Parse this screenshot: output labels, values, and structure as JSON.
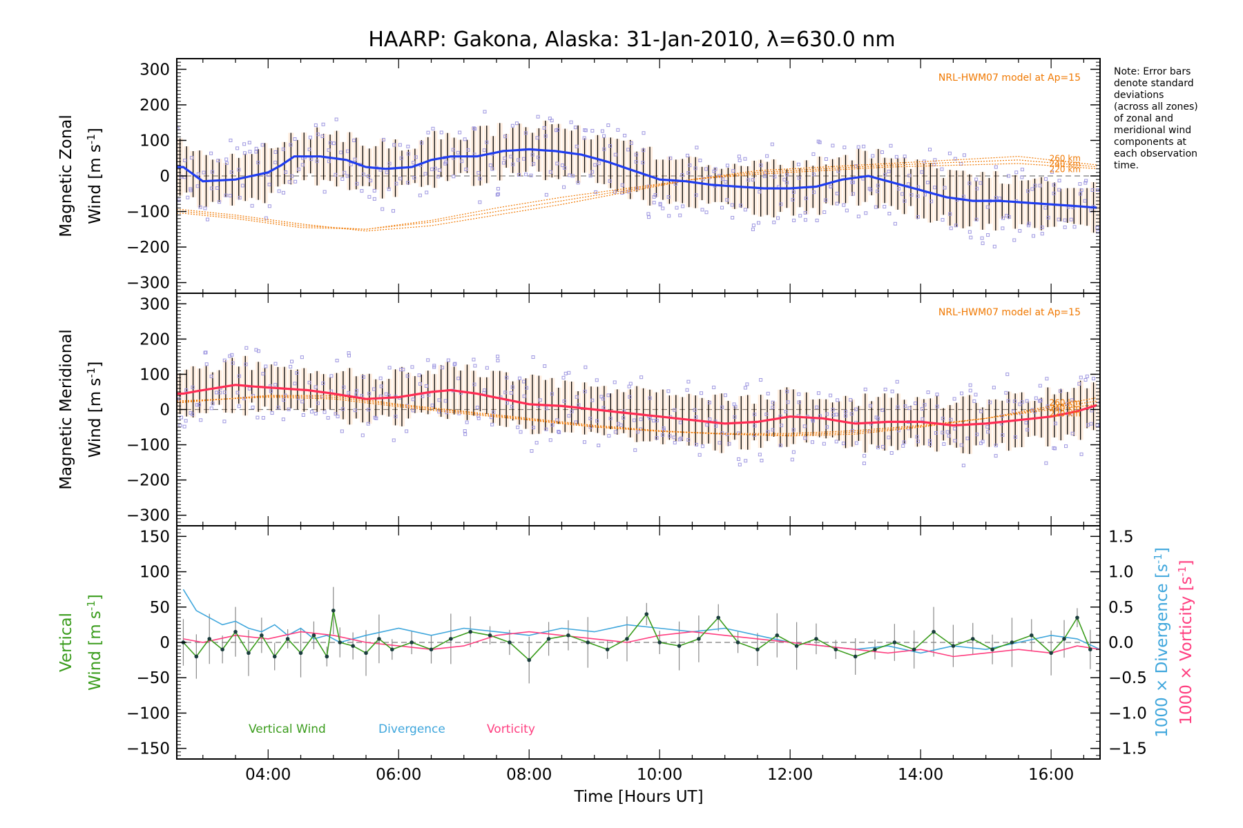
{
  "figure": {
    "title": "HAARP: Gakona,  Alaska: 31-Jan-2010, λ=630.0 nm",
    "xlabel": "Time [Hours UT]",
    "note": [
      "Note: Error bars",
      "denote standard",
      "deviations",
      "(across all zones)",
      "of zonal and",
      "meridional wind",
      "components at",
      "each observation",
      "time."
    ],
    "colors": {
      "zonal": "#1e3cf0",
      "meridional": "#ff2a52",
      "model": "#f07800",
      "vertical": "#3a9c1c",
      "divergence": "#3ea6dc",
      "vorticity": "#ff3d7f",
      "samples": "#9d96e0",
      "errbar": "#000000"
    }
  },
  "chart_data": [
    {
      "type": "line",
      "panel": "zonal",
      "ylabel_line1": "Magnetic Zonal",
      "ylabel_line2": "Wind [m s",
      "ylabel_sup": "-1",
      "ylabel_close": "]",
      "model_label": "NRL-HWM07 model at Ap=15",
      "model_altitudes": [
        "260 km",
        "240 km",
        "220 km"
      ],
      "xlim": [
        2.6,
        16.75
      ],
      "ylim": [
        -330,
        330
      ],
      "yticks": [
        "300",
        "200",
        "100",
        "0",
        "−100",
        "−200",
        "−300"
      ],
      "ytick_values": [
        300,
        200,
        100,
        0,
        -100,
        -200,
        -300
      ],
      "x": [
        2.7,
        3.0,
        3.5,
        4.0,
        4.2,
        4.4,
        4.8,
        5.2,
        5.5,
        5.8,
        6.2,
        6.5,
        6.8,
        7.2,
        7.6,
        8.0,
        8.4,
        8.8,
        9.2,
        9.6,
        10.0,
        10.4,
        10.8,
        11.2,
        11.6,
        12.0,
        12.4,
        12.8,
        13.2,
        13.6,
        14.0,
        14.4,
        14.8,
        15.2,
        15.6,
        16.0,
        16.4,
        16.75
      ],
      "values": [
        25,
        -15,
        -10,
        10,
        30,
        55,
        55,
        45,
        25,
        20,
        25,
        45,
        55,
        55,
        70,
        75,
        70,
        60,
        40,
        15,
        -10,
        -15,
        -25,
        -30,
        -35,
        -35,
        -30,
        -10,
        0,
        -20,
        -40,
        -60,
        -70,
        -70,
        -75,
        -80,
        -85,
        -90
      ],
      "model_curves": [
        {
          "name": "260 km",
          "x": [
            2.7,
            3.5,
            4.5,
            5.5,
            6.5,
            7.5,
            8.5,
            9.5,
            10.5,
            11.5,
            12.5,
            13.5,
            14.5,
            15.5,
            16.75
          ],
          "values": [
            -95,
            -110,
            -135,
            -155,
            -140,
            -110,
            -80,
            -45,
            -10,
            15,
            25,
            35,
            45,
            55,
            30
          ]
        },
        {
          "name": "240 km",
          "x": [
            2.7,
            3.5,
            4.5,
            5.5,
            6.5,
            7.5,
            8.5,
            9.5,
            10.5,
            11.5,
            12.5,
            13.5,
            14.5,
            15.5,
            16.75
          ],
          "values": [
            -100,
            -115,
            -140,
            -150,
            -130,
            -100,
            -70,
            -40,
            -10,
            10,
            20,
            30,
            38,
            45,
            25
          ]
        },
        {
          "name": "220 km",
          "x": [
            2.7,
            3.5,
            4.5,
            5.5,
            6.5,
            7.5,
            8.5,
            9.5,
            10.5,
            11.5,
            12.5,
            13.5,
            14.5,
            15.5,
            16.75
          ],
          "values": [
            -105,
            -120,
            -145,
            -150,
            -125,
            -90,
            -60,
            -35,
            -10,
            5,
            15,
            25,
            30,
            35,
            20
          ]
        }
      ]
    },
    {
      "type": "line",
      "panel": "meridional",
      "ylabel_line1": "Magnetic Meridional",
      "ylabel_line2": "Wind [m s",
      "ylabel_sup": "-1",
      "ylabel_close": "]",
      "model_label": "NRL-HWM07 model at Ap=15",
      "model_altitudes": [
        "260 km",
        "240 km",
        "220 km"
      ],
      "xlim": [
        2.6,
        16.75
      ],
      "ylim": [
        -330,
        330
      ],
      "yticks": [
        "300",
        "200",
        "100",
        "0",
        "−100",
        "−200",
        "−300"
      ],
      "ytick_values": [
        300,
        200,
        100,
        0,
        -100,
        -200,
        -300
      ],
      "x": [
        2.7,
        3.0,
        3.5,
        3.8,
        4.2,
        4.6,
        5.0,
        5.5,
        6.0,
        6.5,
        6.8,
        7.2,
        7.6,
        8.0,
        8.5,
        9.0,
        9.5,
        10.0,
        10.5,
        11.0,
        11.5,
        12.0,
        12.5,
        13.0,
        13.5,
        14.0,
        14.5,
        15.0,
        15.5,
        16.0,
        16.4,
        16.75
      ],
      "values": [
        45,
        55,
        70,
        65,
        60,
        55,
        45,
        30,
        35,
        50,
        55,
        45,
        30,
        15,
        10,
        0,
        -10,
        -20,
        -30,
        -40,
        -35,
        -20,
        -25,
        -40,
        -35,
        -35,
        -45,
        -40,
        -30,
        -20,
        -5,
        15
      ],
      "model_curves": [
        {
          "name": "260 km",
          "x": [
            2.7,
            4.0,
            5.0,
            6.0,
            7.0,
            8.0,
            9.0,
            10.0,
            11.0,
            12.0,
            13.0,
            14.0,
            15.0,
            16.0,
            16.75
          ],
          "values": [
            20,
            40,
            40,
            15,
            -5,
            -25,
            -45,
            -60,
            -70,
            -75,
            -70,
            -50,
            -25,
            10,
            35
          ]
        },
        {
          "name": "240 km",
          "x": [
            2.7,
            4.0,
            5.0,
            6.0,
            7.0,
            8.0,
            9.0,
            10.0,
            11.0,
            12.0,
            13.0,
            14.0,
            15.0,
            16.0,
            16.75
          ],
          "values": [
            22,
            38,
            35,
            12,
            -8,
            -28,
            -48,
            -62,
            -70,
            -72,
            -65,
            -48,
            -25,
            5,
            25
          ]
        },
        {
          "name": "220 km",
          "x": [
            2.7,
            4.0,
            5.0,
            6.0,
            7.0,
            8.0,
            9.0,
            10.0,
            11.0,
            12.0,
            13.0,
            14.0,
            15.0,
            16.0,
            16.75
          ],
          "values": [
            25,
            35,
            30,
            8,
            -12,
            -30,
            -50,
            -62,
            -68,
            -68,
            -60,
            -45,
            -25,
            0,
            15
          ]
        }
      ]
    },
    {
      "type": "line",
      "panel": "vertical",
      "ylabel_line1": "Vertical",
      "ylabel_line2": "Wind [m s",
      "ylabel_sup": "-1",
      "ylabel_close": "]",
      "y2label_div": "1000 × Divergence [s",
      "y2label_vor": "1000 × Vorticity [s",
      "y2_sup": "-1",
      "y2_close": "]",
      "xlim": [
        2.6,
        16.75
      ],
      "ylim": [
        -165,
        165
      ],
      "yticks": [
        "150",
        "100",
        "50",
        "0",
        "−50",
        "−100",
        "−150"
      ],
      "ytick_values": [
        150,
        100,
        50,
        0,
        -50,
        -100,
        -150
      ],
      "y2lim": [
        -1.65,
        1.65
      ],
      "y2ticks": [
        "1.5",
        "1.0",
        "0.5",
        "0.0",
        "−0.5",
        "−1.0",
        "−1.5"
      ],
      "y2tick_values": [
        1.5,
        1.0,
        0.5,
        0.0,
        -0.5,
        -1.0,
        -1.5
      ],
      "xticks": [
        "04:00",
        "06:00",
        "08:00",
        "10:00",
        "12:00",
        "14:00",
        "16:00"
      ],
      "xtick_values": [
        4,
        6,
        8,
        10,
        12,
        14,
        16
      ],
      "legend": [
        "Vertical Wind",
        "Divergence",
        "Vorticity"
      ],
      "series": [
        {
          "name": "Vertical Wind",
          "x": [
            2.7,
            2.9,
            3.1,
            3.3,
            3.5,
            3.7,
            3.9,
            4.1,
            4.3,
            4.5,
            4.7,
            4.9,
            5.0,
            5.1,
            5.3,
            5.5,
            5.7,
            5.9,
            6.2,
            6.5,
            6.8,
            7.1,
            7.4,
            7.7,
            8.0,
            8.3,
            8.6,
            8.9,
            9.2,
            9.5,
            9.8,
            10.0,
            10.3,
            10.6,
            10.9,
            11.2,
            11.5,
            11.8,
            12.1,
            12.4,
            12.7,
            13.0,
            13.3,
            13.6,
            13.9,
            14.2,
            14.5,
            14.8,
            15.1,
            15.4,
            15.7,
            16.0,
            16.2,
            16.4,
            16.6
          ],
          "values": [
            0,
            -20,
            5,
            -10,
            15,
            -15,
            10,
            -20,
            5,
            -15,
            10,
            -20,
            45,
            0,
            -5,
            -15,
            5,
            -10,
            0,
            -10,
            5,
            15,
            10,
            0,
            -25,
            5,
            10,
            0,
            -10,
            5,
            40,
            0,
            -5,
            5,
            35,
            0,
            -10,
            10,
            -5,
            5,
            -10,
            -20,
            -10,
            0,
            -10,
            15,
            -5,
            5,
            -10,
            0,
            10,
            -15,
            5,
            35,
            -10
          ]
        },
        {
          "name": "Divergence",
          "x": [
            2.7,
            2.9,
            3.1,
            3.3,
            3.5,
            3.7,
            3.9,
            4.1,
            4.3,
            4.5,
            4.7,
            4.9,
            5.1,
            5.5,
            6.0,
            6.5,
            7.0,
            7.5,
            8.0,
            8.5,
            9.0,
            9.5,
            10.0,
            10.5,
            11.0,
            11.5,
            12.0,
            12.5,
            13.0,
            13.5,
            14.0,
            14.5,
            15.0,
            15.5,
            16.0,
            16.4,
            16.75
          ],
          "values": [
            0.75,
            0.45,
            0.35,
            0.25,
            0.3,
            0.2,
            0.15,
            0.25,
            0.1,
            0.2,
            0.05,
            0.1,
            0.0,
            0.1,
            0.2,
            0.1,
            0.2,
            0.15,
            0.1,
            0.2,
            0.15,
            0.25,
            0.2,
            0.15,
            0.2,
            0.1,
            0.0,
            -0.05,
            -0.1,
            -0.05,
            -0.15,
            -0.05,
            -0.1,
            0.0,
            0.1,
            0.05,
            -0.1
          ]
        },
        {
          "name": "Vorticity",
          "x": [
            2.7,
            3.0,
            3.5,
            4.0,
            4.5,
            5.0,
            5.5,
            6.0,
            6.5,
            7.0,
            7.5,
            8.0,
            8.5,
            9.0,
            9.5,
            10.0,
            10.5,
            11.0,
            11.5,
            12.0,
            12.5,
            13.0,
            13.5,
            14.0,
            14.5,
            15.0,
            15.5,
            16.0,
            16.4,
            16.75
          ],
          "values": [
            0.05,
            0.0,
            0.1,
            0.05,
            0.15,
            0.1,
            0.0,
            -0.05,
            -0.1,
            -0.05,
            0.1,
            0.15,
            0.1,
            0.05,
            0.0,
            0.1,
            0.15,
            0.1,
            0.05,
            0.0,
            -0.05,
            -0.1,
            -0.15,
            -0.1,
            -0.2,
            -0.15,
            -0.1,
            -0.15,
            -0.05,
            -0.1
          ]
        }
      ]
    }
  ]
}
